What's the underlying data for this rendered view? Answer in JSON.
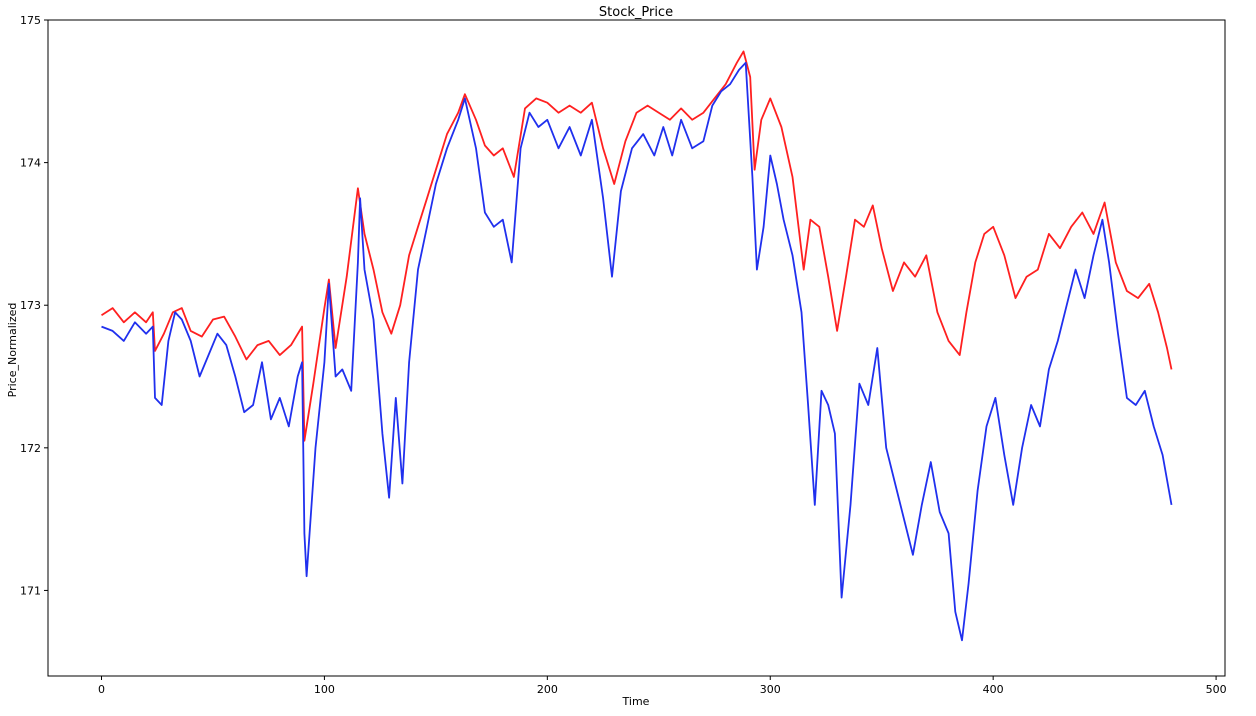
{
  "chart_data": {
    "type": "line",
    "title": "Stock_Price",
    "xlabel": "Time",
    "ylabel": "Price_Normalized",
    "xlim": [
      -24,
      504
    ],
    "ylim": [
      170.4,
      175.0
    ],
    "x_ticks": [
      0,
      100,
      200,
      300,
      400,
      500
    ],
    "y_ticks": [
      171,
      172,
      173,
      174,
      175
    ],
    "grid": false,
    "legend": "none",
    "series": [
      {
        "color": "#ff2020",
        "points": [
          [
            0,
            172.93
          ],
          [
            5,
            172.98
          ],
          [
            10,
            172.88
          ],
          [
            15,
            172.95
          ],
          [
            20,
            172.88
          ],
          [
            23,
            172.95
          ],
          [
            24,
            172.68
          ],
          [
            28,
            172.8
          ],
          [
            32,
            172.95
          ],
          [
            36,
            172.98
          ],
          [
            40,
            172.82
          ],
          [
            45,
            172.78
          ],
          [
            50,
            172.9
          ],
          [
            55,
            172.92
          ],
          [
            60,
            172.78
          ],
          [
            65,
            172.62
          ],
          [
            70,
            172.72
          ],
          [
            75,
            172.75
          ],
          [
            80,
            172.65
          ],
          [
            85,
            172.72
          ],
          [
            90,
            172.85
          ],
          [
            91,
            172.05
          ],
          [
            95,
            172.45
          ],
          [
            100,
            172.98
          ],
          [
            102,
            173.18
          ],
          [
            105,
            172.7
          ],
          [
            110,
            173.2
          ],
          [
            115,
            173.82
          ],
          [
            118,
            173.5
          ],
          [
            122,
            173.25
          ],
          [
            126,
            172.95
          ],
          [
            130,
            172.8
          ],
          [
            134,
            173.0
          ],
          [
            138,
            173.35
          ],
          [
            142,
            173.55
          ],
          [
            146,
            173.75
          ],
          [
            150,
            173.95
          ],
          [
            155,
            174.2
          ],
          [
            160,
            174.35
          ],
          [
            163,
            174.48
          ],
          [
            168,
            174.3
          ],
          [
            172,
            174.12
          ],
          [
            176,
            174.05
          ],
          [
            180,
            174.1
          ],
          [
            185,
            173.9
          ],
          [
            190,
            174.38
          ],
          [
            195,
            174.45
          ],
          [
            200,
            174.42
          ],
          [
            205,
            174.35
          ],
          [
            210,
            174.4
          ],
          [
            215,
            174.35
          ],
          [
            220,
            174.42
          ],
          [
            225,
            174.1
          ],
          [
            230,
            173.85
          ],
          [
            235,
            174.15
          ],
          [
            240,
            174.35
          ],
          [
            245,
            174.4
          ],
          [
            250,
            174.35
          ],
          [
            255,
            174.3
          ],
          [
            260,
            174.38
          ],
          [
            265,
            174.3
          ],
          [
            270,
            174.35
          ],
          [
            275,
            174.45
          ],
          [
            280,
            174.55
          ],
          [
            285,
            174.7
          ],
          [
            288,
            174.78
          ],
          [
            291,
            174.6
          ],
          [
            293,
            173.95
          ],
          [
            296,
            174.3
          ],
          [
            300,
            174.45
          ],
          [
            305,
            174.25
          ],
          [
            310,
            173.9
          ],
          [
            315,
            173.25
          ],
          [
            318,
            173.6
          ],
          [
            322,
            173.55
          ],
          [
            326,
            173.2
          ],
          [
            330,
            172.82
          ],
          [
            334,
            173.2
          ],
          [
            338,
            173.6
          ],
          [
            342,
            173.55
          ],
          [
            346,
            173.7
          ],
          [
            350,
            173.4
          ],
          [
            355,
            173.1
          ],
          [
            360,
            173.3
          ],
          [
            365,
            173.2
          ],
          [
            370,
            173.35
          ],
          [
            375,
            172.95
          ],
          [
            380,
            172.75
          ],
          [
            385,
            172.65
          ],
          [
            388,
            172.95
          ],
          [
            392,
            173.3
          ],
          [
            396,
            173.5
          ],
          [
            400,
            173.55
          ],
          [
            405,
            173.35
          ],
          [
            410,
            173.05
          ],
          [
            415,
            173.2
          ],
          [
            420,
            173.25
          ],
          [
            425,
            173.5
          ],
          [
            430,
            173.4
          ],
          [
            435,
            173.55
          ],
          [
            440,
            173.65
          ],
          [
            445,
            173.5
          ],
          [
            450,
            173.72
          ],
          [
            455,
            173.3
          ],
          [
            460,
            173.1
          ],
          [
            465,
            173.05
          ],
          [
            470,
            173.15
          ],
          [
            474,
            172.95
          ],
          [
            478,
            172.7
          ],
          [
            480,
            172.55
          ]
        ]
      },
      {
        "color": "#2030ee",
        "points": [
          [
            0,
            172.85
          ],
          [
            5,
            172.82
          ],
          [
            10,
            172.75
          ],
          [
            15,
            172.88
          ],
          [
            20,
            172.8
          ],
          [
            23,
            172.85
          ],
          [
            24,
            172.35
          ],
          [
            27,
            172.3
          ],
          [
            30,
            172.75
          ],
          [
            33,
            172.95
          ],
          [
            36,
            172.9
          ],
          [
            40,
            172.75
          ],
          [
            44,
            172.5
          ],
          [
            48,
            172.65
          ],
          [
            52,
            172.8
          ],
          [
            56,
            172.72
          ],
          [
            60,
            172.5
          ],
          [
            64,
            172.25
          ],
          [
            68,
            172.3
          ],
          [
            72,
            172.6
          ],
          [
            76,
            172.2
          ],
          [
            80,
            172.35
          ],
          [
            84,
            172.15
          ],
          [
            88,
            172.5
          ],
          [
            90,
            172.6
          ],
          [
            91,
            171.4
          ],
          [
            92,
            171.1
          ],
          [
            96,
            172.0
          ],
          [
            100,
            172.6
          ],
          [
            102,
            173.15
          ],
          [
            105,
            172.5
          ],
          [
            108,
            172.55
          ],
          [
            112,
            172.4
          ],
          [
            115,
            173.3
          ],
          [
            116,
            173.75
          ],
          [
            118,
            173.25
          ],
          [
            122,
            172.9
          ],
          [
            126,
            172.1
          ],
          [
            129,
            171.65
          ],
          [
            132,
            172.35
          ],
          [
            135,
            171.75
          ],
          [
            138,
            172.6
          ],
          [
            142,
            173.25
          ],
          [
            146,
            173.55
          ],
          [
            150,
            173.85
          ],
          [
            155,
            174.1
          ],
          [
            160,
            174.3
          ],
          [
            163,
            174.45
          ],
          [
            168,
            174.1
          ],
          [
            172,
            173.65
          ],
          [
            176,
            173.55
          ],
          [
            180,
            173.6
          ],
          [
            184,
            173.3
          ],
          [
            188,
            174.1
          ],
          [
            192,
            174.35
          ],
          [
            196,
            174.25
          ],
          [
            200,
            174.3
          ],
          [
            205,
            174.1
          ],
          [
            210,
            174.25
          ],
          [
            215,
            174.05
          ],
          [
            220,
            174.3
          ],
          [
            225,
            173.75
          ],
          [
            229,
            173.2
          ],
          [
            233,
            173.8
          ],
          [
            238,
            174.1
          ],
          [
            243,
            174.2
          ],
          [
            248,
            174.05
          ],
          [
            252,
            174.25
          ],
          [
            256,
            174.05
          ],
          [
            260,
            174.3
          ],
          [
            265,
            174.1
          ],
          [
            270,
            174.15
          ],
          [
            274,
            174.4
          ],
          [
            278,
            174.5
          ],
          [
            282,
            174.55
          ],
          [
            286,
            174.65
          ],
          [
            289,
            174.7
          ],
          [
            292,
            173.9
          ],
          [
            294,
            173.25
          ],
          [
            297,
            173.55
          ],
          [
            300,
            174.05
          ],
          [
            303,
            173.85
          ],
          [
            306,
            173.6
          ],
          [
            310,
            173.35
          ],
          [
            314,
            172.95
          ],
          [
            317,
            172.3
          ],
          [
            320,
            171.6
          ],
          [
            323,
            172.4
          ],
          [
            326,
            172.3
          ],
          [
            329,
            172.1
          ],
          [
            332,
            170.95
          ],
          [
            336,
            171.6
          ],
          [
            340,
            172.45
          ],
          [
            344,
            172.3
          ],
          [
            348,
            172.7
          ],
          [
            352,
            172.0
          ],
          [
            356,
            171.75
          ],
          [
            360,
            171.5
          ],
          [
            364,
            171.25
          ],
          [
            368,
            171.6
          ],
          [
            372,
            171.9
          ],
          [
            376,
            171.55
          ],
          [
            380,
            171.4
          ],
          [
            383,
            170.85
          ],
          [
            386,
            170.65
          ],
          [
            389,
            171.05
          ],
          [
            393,
            171.7
          ],
          [
            397,
            172.15
          ],
          [
            401,
            172.35
          ],
          [
            405,
            171.95
          ],
          [
            409,
            171.6
          ],
          [
            413,
            172.0
          ],
          [
            417,
            172.3
          ],
          [
            421,
            172.15
          ],
          [
            425,
            172.55
          ],
          [
            429,
            172.75
          ],
          [
            433,
            173.0
          ],
          [
            437,
            173.25
          ],
          [
            441,
            173.05
          ],
          [
            445,
            173.35
          ],
          [
            449,
            173.6
          ],
          [
            452,
            173.3
          ],
          [
            456,
            172.8
          ],
          [
            460,
            172.35
          ],
          [
            464,
            172.3
          ],
          [
            468,
            172.4
          ],
          [
            472,
            172.15
          ],
          [
            476,
            171.95
          ],
          [
            480,
            171.6
          ]
        ]
      }
    ]
  }
}
